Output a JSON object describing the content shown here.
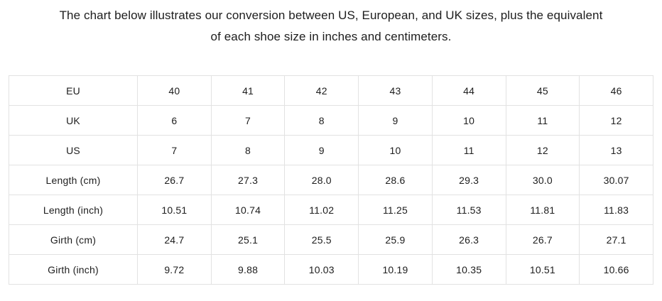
{
  "intro": {
    "line1": "The chart below illustrates our conversion between US, European, and UK sizes, plus the equivalent",
    "line2": "of each shoe size in inches and centimeters."
  },
  "table": {
    "rows": [
      {
        "label": "EU",
        "values": [
          "40",
          "41",
          "42",
          "43",
          "44",
          "45",
          "46"
        ]
      },
      {
        "label": "UK",
        "values": [
          "6",
          "7",
          "8",
          "9",
          "10",
          "11",
          "12"
        ]
      },
      {
        "label": "US",
        "values": [
          "7",
          "8",
          "9",
          "10",
          "11",
          "12",
          "13"
        ]
      },
      {
        "label": "Length (cm)",
        "values": [
          "26.7",
          "27.3",
          "28.0",
          "28.6",
          "29.3",
          "30.0",
          "30.07"
        ]
      },
      {
        "label": "Length (inch)",
        "values": [
          "10.51",
          "10.74",
          "11.02",
          "11.25",
          "11.53",
          "11.81",
          "11.83"
        ]
      },
      {
        "label": "Girth (cm)",
        "values": [
          "24.7",
          "25.1",
          "25.5",
          "25.9",
          "26.3",
          "26.7",
          "27.1"
        ]
      },
      {
        "label": "Girth (inch)",
        "values": [
          "9.72",
          "9.88",
          "10.03",
          "10.19",
          "10.35",
          "10.51",
          "10.66"
        ]
      }
    ]
  },
  "colors": {
    "text": "#1d1d1d",
    "border": "#e2e2e2",
    "background": "#ffffff"
  }
}
